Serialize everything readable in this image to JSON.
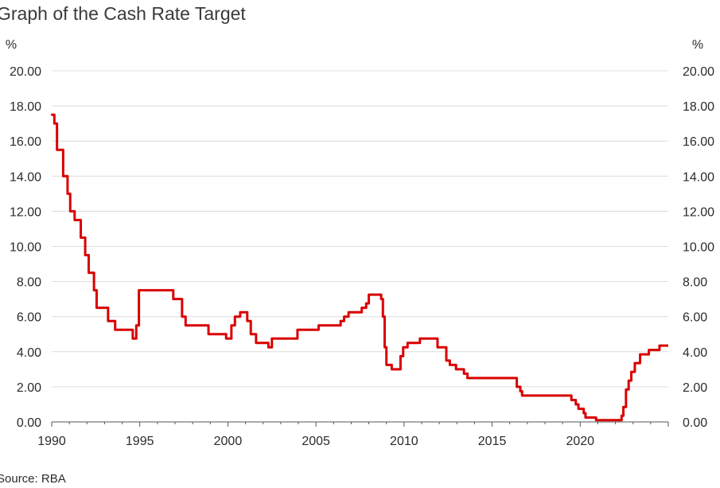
{
  "chart_data": {
    "type": "line",
    "title": "Graph of the Cash Rate Target",
    "source": "Source: RBA",
    "left_unit": "%",
    "right_unit": "%",
    "xlim": [
      1990,
      2025
    ],
    "ylim": [
      0,
      20
    ],
    "grid": true,
    "y_ticks": [
      "0.00",
      "2.00",
      "4.00",
      "6.00",
      "8.00",
      "10.00",
      "12.00",
      "14.00",
      "16.00",
      "18.00",
      "20.00"
    ],
    "x_ticks": [
      "1990",
      "1995",
      "2000",
      "2005",
      "2010",
      "2015",
      "2020"
    ],
    "line_color": "#d90000",
    "series": [
      {
        "x": [
          1990.0,
          1990.15,
          1990.3,
          1990.65,
          1990.9,
          1991.05,
          1991.3,
          1991.65,
          1991.9,
          1992.1,
          1992.4,
          1992.55,
          1993.2,
          1993.6,
          1994.6,
          1994.8,
          1994.95,
          1996.5,
          1996.9,
          1997.4,
          1997.6,
          1998.9,
          1999.9,
          2000.2,
          2000.4,
          2000.7,
          2001.1,
          2001.3,
          2001.6,
          2002.3,
          2002.5,
          2003.85,
          2003.95,
          2005.15,
          2006.4,
          2006.6,
          2006.85,
          2007.6,
          2007.85,
          2008.0,
          2008.7,
          2008.8,
          2008.9,
          2009.0,
          2009.3,
          2009.8,
          2009.95,
          2010.2,
          2010.9,
          2011.9,
          2012.4,
          2012.6,
          2012.95,
          2013.4,
          2013.6,
          2016.4,
          2016.6,
          2016.7,
          2019.5,
          2019.75,
          2019.9,
          2020.2,
          2020.3,
          2020.9,
          2022.35,
          2022.45,
          2022.6,
          2022.75,
          2022.9,
          2023.1,
          2023.4,
          2023.9,
          2024.5
        ],
        "y": [
          17.5,
          17.0,
          15.5,
          14.0,
          13.0,
          12.0,
          11.5,
          10.5,
          9.5,
          8.5,
          7.5,
          6.5,
          5.75,
          5.25,
          4.75,
          5.5,
          7.5,
          7.5,
          7.0,
          6.0,
          5.5,
          5.0,
          4.75,
          5.5,
          6.0,
          6.25,
          5.75,
          5.0,
          4.5,
          4.25,
          4.75,
          4.75,
          5.25,
          5.5,
          5.75,
          6.0,
          6.25,
          6.5,
          6.75,
          7.25,
          7.0,
          6.0,
          4.25,
          3.25,
          3.0,
          3.75,
          4.25,
          4.5,
          4.75,
          4.25,
          3.5,
          3.25,
          3.0,
          2.75,
          2.5,
          2.0,
          1.75,
          1.5,
          1.25,
          1.0,
          0.75,
          0.5,
          0.25,
          0.1,
          0.35,
          0.85,
          1.85,
          2.35,
          2.85,
          3.35,
          3.85,
          4.1,
          4.35
        ]
      }
    ]
  }
}
